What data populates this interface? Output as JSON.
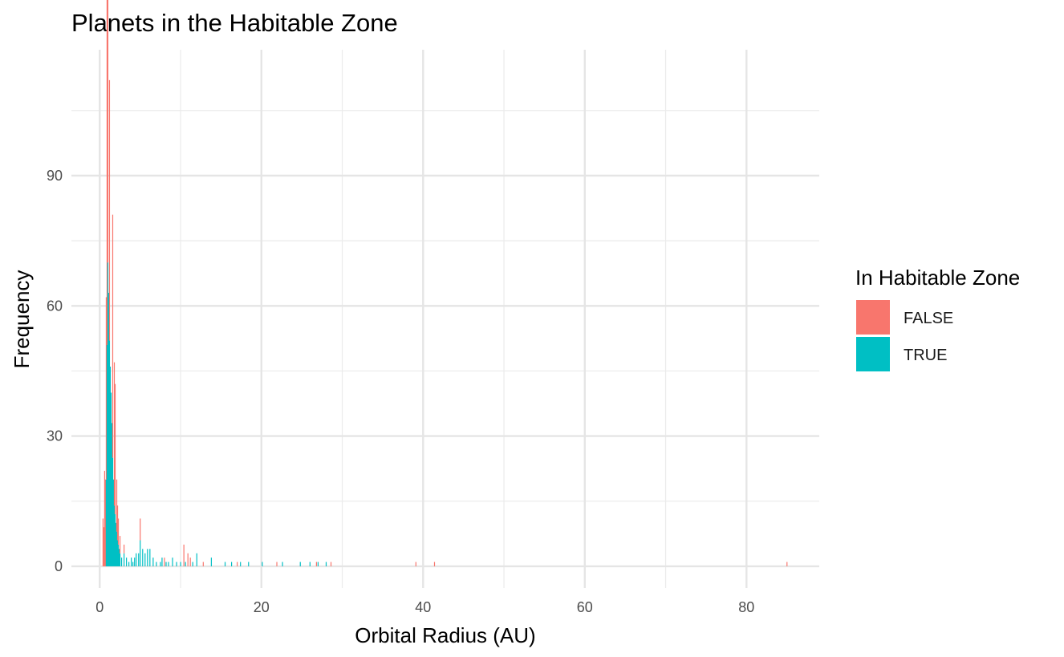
{
  "chart_data": {
    "type": "bar",
    "subtype": "stacked-histogram",
    "title": "Planets in the Habitable Zone",
    "xlabel": "Orbital Radius (AU)",
    "ylabel": "Frequency",
    "xlim": [
      -3.5,
      89
    ],
    "ylim": [
      -5,
      119
    ],
    "x_ticks": [
      0,
      20,
      40,
      60,
      80
    ],
    "x_tick_labels": [
      "0",
      "20",
      "40",
      "60",
      "80"
    ],
    "y_ticks": [
      0,
      30,
      60,
      90
    ],
    "y_tick_labels": [
      "0",
      "30",
      "60",
      "90"
    ],
    "grid": true,
    "legend": {
      "title": "In Habitable Zone",
      "placement": "right",
      "entries": [
        {
          "label": "FALSE",
          "color": "#F8766D"
        },
        {
          "label": "TRUE",
          "color": "#00BFC4"
        }
      ]
    },
    "bin_width": 0.1,
    "series": [
      {
        "name": "FALSE",
        "color": "#F8766D",
        "points": [
          [
            0.4,
            11
          ],
          [
            0.5,
            9
          ],
          [
            0.6,
            22
          ],
          [
            0.7,
            20
          ],
          [
            0.8,
            42
          ],
          [
            0.9,
            113
          ],
          [
            1.0,
            90
          ],
          [
            1.2,
            60
          ],
          [
            1.6,
            56
          ],
          [
            1.8,
            33
          ],
          [
            1.9,
            30
          ],
          [
            2.1,
            12
          ],
          [
            2.2,
            8
          ],
          [
            2.3,
            6
          ],
          [
            2.5,
            4
          ],
          [
            3.0,
            2
          ],
          [
            5.0,
            5
          ],
          [
            8.0,
            2
          ],
          [
            10.4,
            5
          ],
          [
            10.9,
            3
          ],
          [
            11.2,
            2
          ],
          [
            12.8,
            1
          ],
          [
            17.0,
            1
          ],
          [
            21.9,
            1
          ],
          [
            26.8,
            1
          ],
          [
            28.6,
            1
          ],
          [
            39.1,
            1
          ],
          [
            41.4,
            1
          ],
          [
            85.0,
            1
          ]
        ]
      },
      {
        "name": "TRUE",
        "color": "#00BFC4",
        "points": [
          [
            0.8,
            20
          ],
          [
            0.9,
            51
          ],
          [
            1.0,
            70
          ],
          [
            1.1,
            63
          ],
          [
            1.2,
            52
          ],
          [
            1.3,
            46
          ],
          [
            1.4,
            40
          ],
          [
            1.5,
            33
          ],
          [
            1.6,
            25
          ],
          [
            1.7,
            20
          ],
          [
            1.8,
            14
          ],
          [
            1.9,
            12
          ],
          [
            2.0,
            10
          ],
          [
            2.1,
            8
          ],
          [
            2.2,
            6
          ],
          [
            2.3,
            5
          ],
          [
            2.4,
            4
          ],
          [
            2.5,
            3
          ],
          [
            2.7,
            2
          ],
          [
            3.0,
            3
          ],
          [
            3.3,
            2
          ],
          [
            3.6,
            1
          ],
          [
            3.9,
            2
          ],
          [
            4.1,
            1
          ],
          [
            4.3,
            2
          ],
          [
            4.5,
            3
          ],
          [
            4.8,
            3
          ],
          [
            5.0,
            6
          ],
          [
            5.3,
            4
          ],
          [
            5.6,
            3
          ],
          [
            5.9,
            4
          ],
          [
            6.2,
            4
          ],
          [
            6.6,
            2
          ],
          [
            7.0,
            1
          ],
          [
            7.5,
            1
          ],
          [
            7.7,
            2
          ],
          [
            8.2,
            1
          ],
          [
            8.5,
            1
          ],
          [
            9.0,
            2
          ],
          [
            9.5,
            1
          ],
          [
            10.0,
            1
          ],
          [
            10.6,
            1
          ],
          [
            11.5,
            1
          ],
          [
            12.0,
            3
          ],
          [
            13.8,
            2
          ],
          [
            15.5,
            1
          ],
          [
            16.3,
            1
          ],
          [
            17.4,
            1
          ],
          [
            18.4,
            1
          ],
          [
            20.1,
            1
          ],
          [
            22.6,
            1
          ],
          [
            24.8,
            1
          ],
          [
            26.0,
            1
          ],
          [
            27.0,
            1
          ],
          [
            28.0,
            1
          ]
        ]
      }
    ]
  }
}
